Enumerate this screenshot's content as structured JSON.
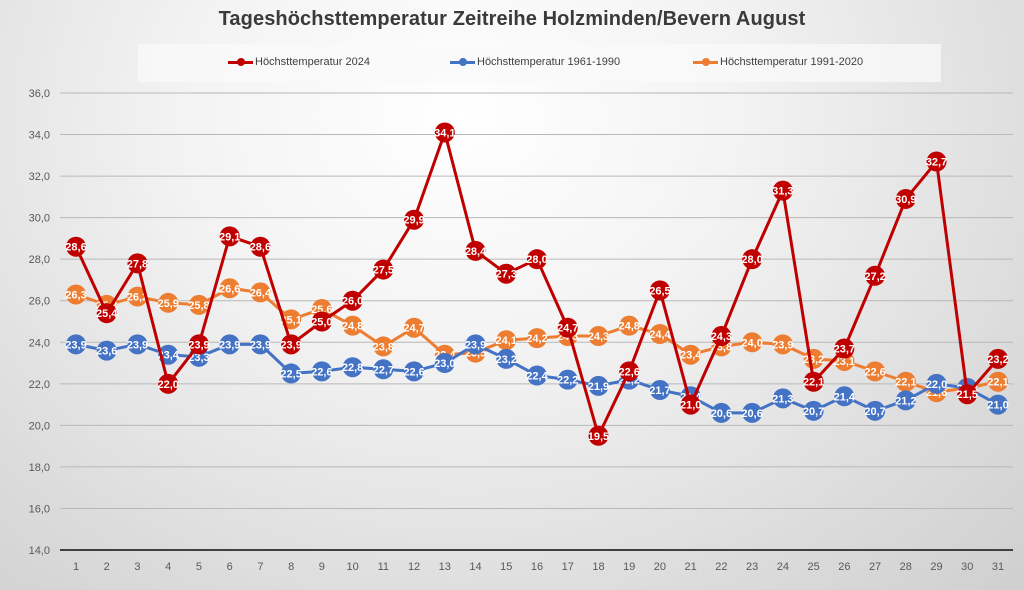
{
  "chart_data": {
    "type": "line",
    "title": "Tageshöchsttemperatur Zeitreihe Holzminden/Bevern August",
    "xlabel": "",
    "ylabel": "",
    "x": [
      1,
      2,
      3,
      4,
      5,
      6,
      7,
      8,
      9,
      10,
      11,
      12,
      13,
      14,
      15,
      16,
      17,
      18,
      19,
      20,
      21,
      22,
      23,
      24,
      25,
      26,
      27,
      28,
      29,
      30,
      31
    ],
    "x_tick_labels": [
      "1",
      "2",
      "3",
      "4",
      "5",
      "6",
      "7",
      "8",
      "9",
      "10",
      "11",
      "12",
      "13",
      "14",
      "15",
      "16",
      "17",
      "18",
      "19",
      "20",
      "21",
      "22",
      "23",
      "24",
      "25",
      "26",
      "27",
      "28",
      "29",
      "30",
      "31"
    ],
    "ylim": [
      14,
      36
    ],
    "y_ticks": [
      14,
      16,
      18,
      20,
      22,
      24,
      26,
      28,
      30,
      32,
      34,
      36
    ],
    "y_tick_labels": [
      "14,0",
      "16,0",
      "18,0",
      "20,0",
      "22,0",
      "24,0",
      "26,0",
      "28,0",
      "30,0",
      "32,0",
      "34,0",
      "36,0"
    ],
    "grid": true,
    "legend_position": "top",
    "data_labels": true,
    "decimal_separator": ",",
    "series": [
      {
        "name": "Höchsttemperatur 2024",
        "color": "#c00000",
        "values": [
          28.6,
          25.4,
          27.8,
          22.0,
          23.9,
          29.1,
          28.6,
          23.9,
          25.0,
          26.0,
          27.5,
          29.9,
          34.1,
          28.4,
          27.3,
          28.0,
          24.7,
          19.5,
          22.6,
          26.5,
          21.0,
          24.3,
          28.0,
          31.3,
          22.1,
          23.7,
          27.2,
          30.9,
          32.7,
          21.5,
          23.2
        ]
      },
      {
        "name": "Höchsttemperatur 1961-1990",
        "color": "#4472c4",
        "values": [
          23.9,
          23.6,
          23.9,
          23.4,
          23.3,
          23.9,
          23.9,
          22.5,
          22.6,
          22.8,
          22.7,
          22.6,
          23.0,
          23.9,
          23.2,
          22.4,
          22.2,
          21.9,
          22.2,
          21.7,
          21.4,
          20.6,
          20.6,
          21.3,
          20.7,
          21.4,
          20.7,
          21.2,
          22.0,
          21.8,
          21.0
        ]
      },
      {
        "name": "Höchsttemperatur 1991-2020",
        "color": "#ed7d31",
        "values": [
          26.3,
          25.8,
          26.2,
          25.9,
          25.8,
          26.6,
          26.4,
          25.1,
          25.6,
          24.8,
          23.8,
          24.7,
          23.4,
          23.5,
          24.1,
          24.2,
          24.3,
          24.3,
          24.8,
          24.4,
          23.4,
          23.8,
          24.0,
          23.9,
          23.2,
          23.1,
          22.6,
          22.1,
          21.6,
          21.8,
          22.1
        ]
      }
    ]
  }
}
